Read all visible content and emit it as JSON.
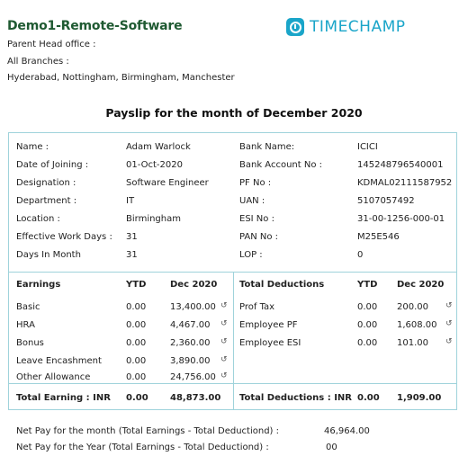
{
  "header": {
    "company": "Demo1-Remote-Software",
    "parent_head_office": "Parent Head office :",
    "all_branches": "All Branches :",
    "branches_list": "Hyderabad, Nottingham, Birmingham, Manchester",
    "logo_text": "TIMECHAMP"
  },
  "title": "Payslip for the month of December 2020",
  "employee": {
    "left": [
      {
        "label": "Name :",
        "value": "Adam Warlock"
      },
      {
        "label": "Date of Joining :",
        "value": "01-Oct-2020"
      },
      {
        "label": "Designation :",
        "value": "Software Engineer"
      },
      {
        "label": "Department :",
        "value": "IT"
      },
      {
        "label": "Location :",
        "value": "Birmingham"
      },
      {
        "label": "Effective Work  Days :",
        "value": "31"
      },
      {
        "label": "Days In Month",
        "value": "31"
      }
    ],
    "right": [
      {
        "label": "Bank Name:",
        "value": "ICICI"
      },
      {
        "label": "Bank Account No :",
        "value": "145248796540001"
      },
      {
        "label": "PF No :",
        "value": "KDMAL02111587952"
      },
      {
        "label": "UAN :",
        "value": "5107057492"
      },
      {
        "label": "ESI No :",
        "value": "31-00-1256-000-01"
      },
      {
        "label": "PAN No :",
        "value": "M25E546"
      },
      {
        "label": "LOP :",
        "value": "0"
      }
    ]
  },
  "earnings": {
    "header": {
      "title": "Earnings",
      "ytd": "YTD",
      "month": "Dec 2020"
    },
    "rows": [
      {
        "name": "Basic",
        "ytd": "0.00",
        "month": "13,400.00"
      },
      {
        "name": "HRA",
        "ytd": "0.00",
        "month": "4,467.00"
      },
      {
        "name": "Bonus",
        "ytd": "0.00",
        "month": "2,360.00"
      },
      {
        "name": "Leave Encashment",
        "ytd": "0.00",
        "month": "3,890.00"
      },
      {
        "name": "Other Allowance",
        "ytd": "0.00",
        "month": "24,756.00"
      }
    ],
    "total": {
      "label": "Total Earning : INR",
      "ytd": "0.00",
      "month": "48,873.00"
    }
  },
  "deductions": {
    "header": {
      "title": "Total Deductions",
      "ytd": "YTD",
      "month": "Dec 2020"
    },
    "rows": [
      {
        "name": "Prof Tax",
        "ytd": "0.00",
        "month": "200.00"
      },
      {
        "name": "Employee PF",
        "ytd": "0.00",
        "month": "1,608.00"
      },
      {
        "name": "Employee ESI",
        "ytd": "0.00",
        "month": "101.00"
      }
    ],
    "total": {
      "label": "Total Deductions : INR",
      "ytd": "0.00",
      "month": "1,909.00"
    }
  },
  "footer": {
    "net_month_label": "Net Pay for the month (Total Earnings - Total Deductiond) :",
    "net_month_value": "46,964.00",
    "net_year_label": "Net Pay for the Year (Total Earnings - Total Deductiond) :",
    "net_year_value": "00"
  },
  "icons": {
    "history": "history-icon",
    "logo": "timechamp-clock-icon"
  },
  "colors": {
    "company": "#1f5a32",
    "logo": "#1aa5c9",
    "border": "#9fd3db"
  }
}
